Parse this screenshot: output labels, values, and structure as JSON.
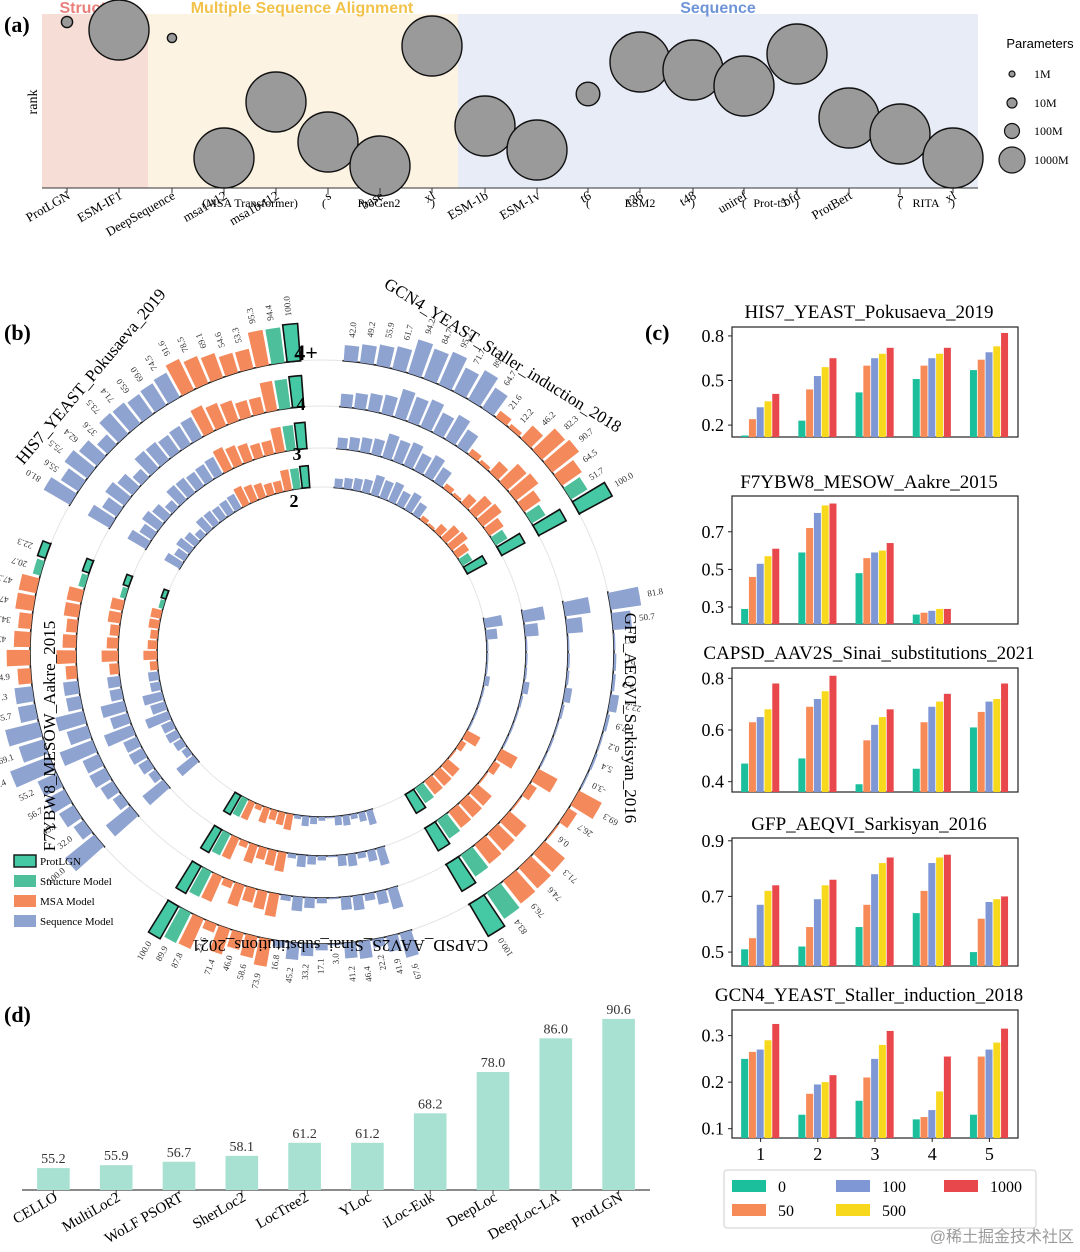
{
  "watermark": "@稀土掘金技术社区",
  "colors": {
    "protlgn": "#45c9a4",
    "structure": "#4dbf9a",
    "msa": "#f48a5c",
    "sequence": "#8fa3d1",
    "c0": "#1bbf9b",
    "c50": "#f78b58",
    "c100": "#7f97d4",
    "c500": "#f7d81c",
    "c1000": "#e8474b",
    "bubble": "#9a9a9a",
    "bgStructure": "#f6ddd6",
    "bgMSA": "#fdf3e2",
    "bgSequence": "#e7ecf7",
    "dbar": "#a8e1d2"
  },
  "panelA": {
    "label": "(a)",
    "ylabel": "rank",
    "regions": [
      {
        "name": "Structure",
        "color": "#e8807c"
      },
      {
        "name": "Multiple Sequence Alignment",
        "color": "#f2c24a"
      },
      {
        "name": "Sequence",
        "color": "#6f95d8"
      }
    ],
    "groupLabels": [
      "(MSA Transformer)",
      "(",
      "ProGen2",
      ")",
      "(",
      "ESM2",
      ")",
      "(",
      "Prot-t5",
      ")",
      "(",
      "RITA",
      ")"
    ],
    "legendTitle": "Parameters",
    "legend": [
      {
        "label": "1M",
        "size": 1
      },
      {
        "label": "10M",
        "size": 10
      },
      {
        "label": "100M",
        "size": 100
      },
      {
        "label": "1000M",
        "size": 1000
      }
    ],
    "models": [
      {
        "name": "ProtLGN",
        "rank": 1,
        "params": 1
      },
      {
        "name": "ESM-IF1",
        "rank": 2,
        "params": 142
      },
      {
        "name": "DeepSequence",
        "rank": 3,
        "params": 0.5
      },
      {
        "name": "msa1-t12",
        "rank": 18,
        "params": 100
      },
      {
        "name": "msa1b-t12",
        "rank": 11,
        "params": 100
      },
      {
        "name": "s",
        "rank": 16,
        "params": 151
      },
      {
        "name": "base",
        "rank": 19,
        "params": 764
      },
      {
        "name": "xl",
        "rank": 4,
        "params": 6400
      },
      {
        "name": "ESM-1b",
        "rank": 14,
        "params": 650
      },
      {
        "name": "ESM-1v",
        "rank": 17,
        "params": 650
      },
      {
        "name": "t6",
        "rank": 10,
        "params": 8
      },
      {
        "name": "t36",
        "rank": 6,
        "params": 3000
      },
      {
        "name": "t48",
        "rank": 7,
        "params": 15000
      },
      {
        "name": "uniref",
        "rank": 9,
        "params": 3000
      },
      {
        "name": "bfd",
        "rank": 5,
        "params": 3000
      },
      {
        "name": "ProtBert",
        "rank": 13,
        "params": 420
      },
      {
        "name": "s ",
        "rank": 15,
        "params": 85
      },
      {
        "name": "xl ",
        "rank": 18,
        "params": 1200
      }
    ]
  },
  "panelB": {
    "label": "(b)",
    "ringLabels": [
      "4+",
      "4",
      "3",
      "2"
    ],
    "datasets": [
      {
        "name": "HIS7_YEAST_Pokusaeva_2019",
        "a0": 195,
        "a1": 290
      },
      {
        "name": "GCN4_YEAST_Staller_induction_2018",
        "a0": 295,
        "a1": 390
      },
      {
        "name": "GFP_AEQVI_Sarkisyan_2016",
        "a0": 10,
        "a1": 110
      },
      {
        "name": "CAPSD_AAV2S_Sinai_substitutions_2021",
        "a0": 115,
        "a1": 195
      },
      {
        "name": "F7YBW8_MESOW_Aakre_2015",
        "a0": 190,
        "a1": 250
      }
    ],
    "legend": [
      {
        "label": "ProtLGN",
        "key": "protlgn"
      },
      {
        "label": "Structure Model",
        "key": "structure"
      },
      {
        "label": "MSA Model",
        "key": "msa"
      },
      {
        "label": "Sequence Model",
        "key": "sequence"
      }
    ],
    "visibleValues": {
      "HIS7_outer": [
        81.0,
        55.6,
        75.5,
        62.4,
        37.6,
        73.5,
        71.4,
        65.0,
        69.0,
        74.5,
        91.6,
        78.5,
        69.1,
        54.6,
        53.3,
        95.3,
        94.4,
        100.0
      ],
      "GCN4_outer": [
        42.0,
        49.2,
        55.9,
        61.7,
        94.2,
        84.7,
        95.2,
        71.7,
        89.7,
        64.7,
        21.6,
        12.2,
        46.2,
        82.3,
        90.7,
        64.5,
        51.7,
        100.0
      ],
      "GFP_outer": [
        81.8,
        50.7,
        1.3,
        6.4,
        7.2,
        22.2,
        7.9,
        0.2,
        5.4,
        -3.0,
        69.3,
        26.7,
        0.6,
        71.3,
        74.6,
        76.9,
        83.4,
        100.0
      ],
      "CAPSD_outer": [
        67.6,
        41.9,
        22.2,
        46.4,
        41.2,
        3.0,
        17.1,
        33.2,
        45.2,
        16.8,
        73.9,
        58.6,
        46.0,
        71.4,
        23.6,
        87.8,
        89.9,
        100.0
      ],
      "F7_outer": [
        100.0,
        32.0,
        45.1,
        56.7,
        55.2,
        112.4,
        69.1,
        91.9,
        45.7,
        47.3,
        34.9,
        62.5,
        43.3,
        34.5,
        47.6,
        47.3,
        20.7,
        22.3
      ]
    }
  },
  "panelC": {
    "label": "(c)",
    "xticks": [
      "1",
      "2",
      "3",
      "4",
      "5"
    ],
    "legend": [
      "0",
      "50",
      "100",
      "500",
      "1000"
    ],
    "subplots": [
      {
        "title": "HIS7_YEAST_Pokusaeva_2019",
        "ylim": [
          0.12,
          0.86
        ],
        "yticks": [
          "0.2",
          "0.5",
          "0.8"
        ],
        "ytickVals": [
          0.2,
          0.5,
          0.8
        ],
        "values": [
          [
            0.13,
            0.24,
            0.32,
            0.36,
            0.41
          ],
          [
            0.23,
            0.44,
            0.53,
            0.59,
            0.65
          ],
          [
            0.42,
            0.6,
            0.65,
            0.68,
            0.72
          ],
          [
            0.51,
            0.6,
            0.65,
            0.68,
            0.72
          ],
          [
            0.57,
            0.64,
            0.69,
            0.73,
            0.82
          ]
        ]
      },
      {
        "title": "F7YBW8_MESOW_Aakre_2015",
        "ylim": [
          0.21,
          0.89
        ],
        "yticks": [
          "0.3",
          "0.5",
          "0.7"
        ],
        "ytickVals": [
          0.3,
          0.5,
          0.7
        ],
        "values": [
          [
            0.29,
            0.46,
            0.53,
            0.57,
            0.61
          ],
          [
            0.59,
            0.72,
            0.8,
            0.84,
            0.85
          ],
          [
            0.48,
            0.56,
            0.59,
            0.6,
            0.64
          ],
          [
            0.26,
            0.27,
            0.28,
            0.29,
            0.29
          ],
          [
            null,
            null,
            null,
            null,
            null
          ]
        ]
      },
      {
        "title": "CAPSD_AAV2S_Sinai_substitutions_2021",
        "ylim": [
          0.36,
          0.84
        ],
        "yticks": [
          "0.4",
          "0.6",
          "0.8"
        ],
        "ytickVals": [
          0.4,
          0.6,
          0.8
        ],
        "values": [
          [
            0.47,
            0.63,
            0.65,
            0.68,
            0.78
          ],
          [
            0.49,
            0.69,
            0.72,
            0.75,
            0.81
          ],
          [
            0.39,
            0.56,
            0.62,
            0.65,
            0.68
          ],
          [
            0.45,
            0.63,
            0.69,
            0.71,
            0.74
          ],
          [
            0.61,
            0.67,
            0.71,
            0.72,
            0.78
          ]
        ]
      },
      {
        "title": "GFP_AEQVI_Sarkisyan_2016",
        "ylim": [
          0.45,
          0.91
        ],
        "yticks": [
          "0.5",
          "0.7",
          "0.9"
        ],
        "ytickVals": [
          0.5,
          0.7,
          0.9
        ],
        "values": [
          [
            0.51,
            0.55,
            0.67,
            0.72,
            0.74
          ],
          [
            0.52,
            0.59,
            0.69,
            0.74,
            0.76
          ],
          [
            0.59,
            0.67,
            0.78,
            0.82,
            0.84
          ],
          [
            0.64,
            0.72,
            0.82,
            0.84,
            0.85
          ],
          [
            0.5,
            0.62,
            0.68,
            0.69,
            0.7
          ]
        ]
      },
      {
        "title": "GCN4_YEAST_Staller_induction_2018",
        "ylim": [
          0.08,
          0.355
        ],
        "yticks": [
          "0.1",
          "0.2",
          "0.3"
        ],
        "ytickVals": [
          0.1,
          0.2,
          0.3
        ],
        "values": [
          [
            0.25,
            0.265,
            0.27,
            0.29,
            0.325
          ],
          [
            0.13,
            0.175,
            0.195,
            0.2,
            0.215
          ],
          [
            0.16,
            0.21,
            0.25,
            0.28,
            0.31
          ],
          [
            0.12,
            0.125,
            0.14,
            0.18,
            0.255
          ],
          [
            0.13,
            0.255,
            0.27,
            0.285,
            0.315
          ]
        ]
      }
    ]
  },
  "chart_data": {
    "type": "bar",
    "title": "(d)",
    "categories": [
      "CELLO",
      "MultiLoc2",
      "WoLF PSORT",
      "SherLoc2",
      "LocTree2",
      "YLoc",
      "iLoc-Euk",
      "DeepLoc",
      "DeepLoc-LA",
      "ProtLGN"
    ],
    "values": [
      55.2,
      55.9,
      56.7,
      58.1,
      61.2,
      61.2,
      68.2,
      78.0,
      86.0,
      90.6
    ],
    "labels": [
      "55.2",
      "55.9",
      "56.7",
      "58.1",
      "61.2",
      "61.2",
      "68.2",
      "78.0",
      "86.0",
      "90.6"
    ],
    "xlabel": "",
    "ylabel": "",
    "ylim": [
      50,
      92
    ]
  }
}
